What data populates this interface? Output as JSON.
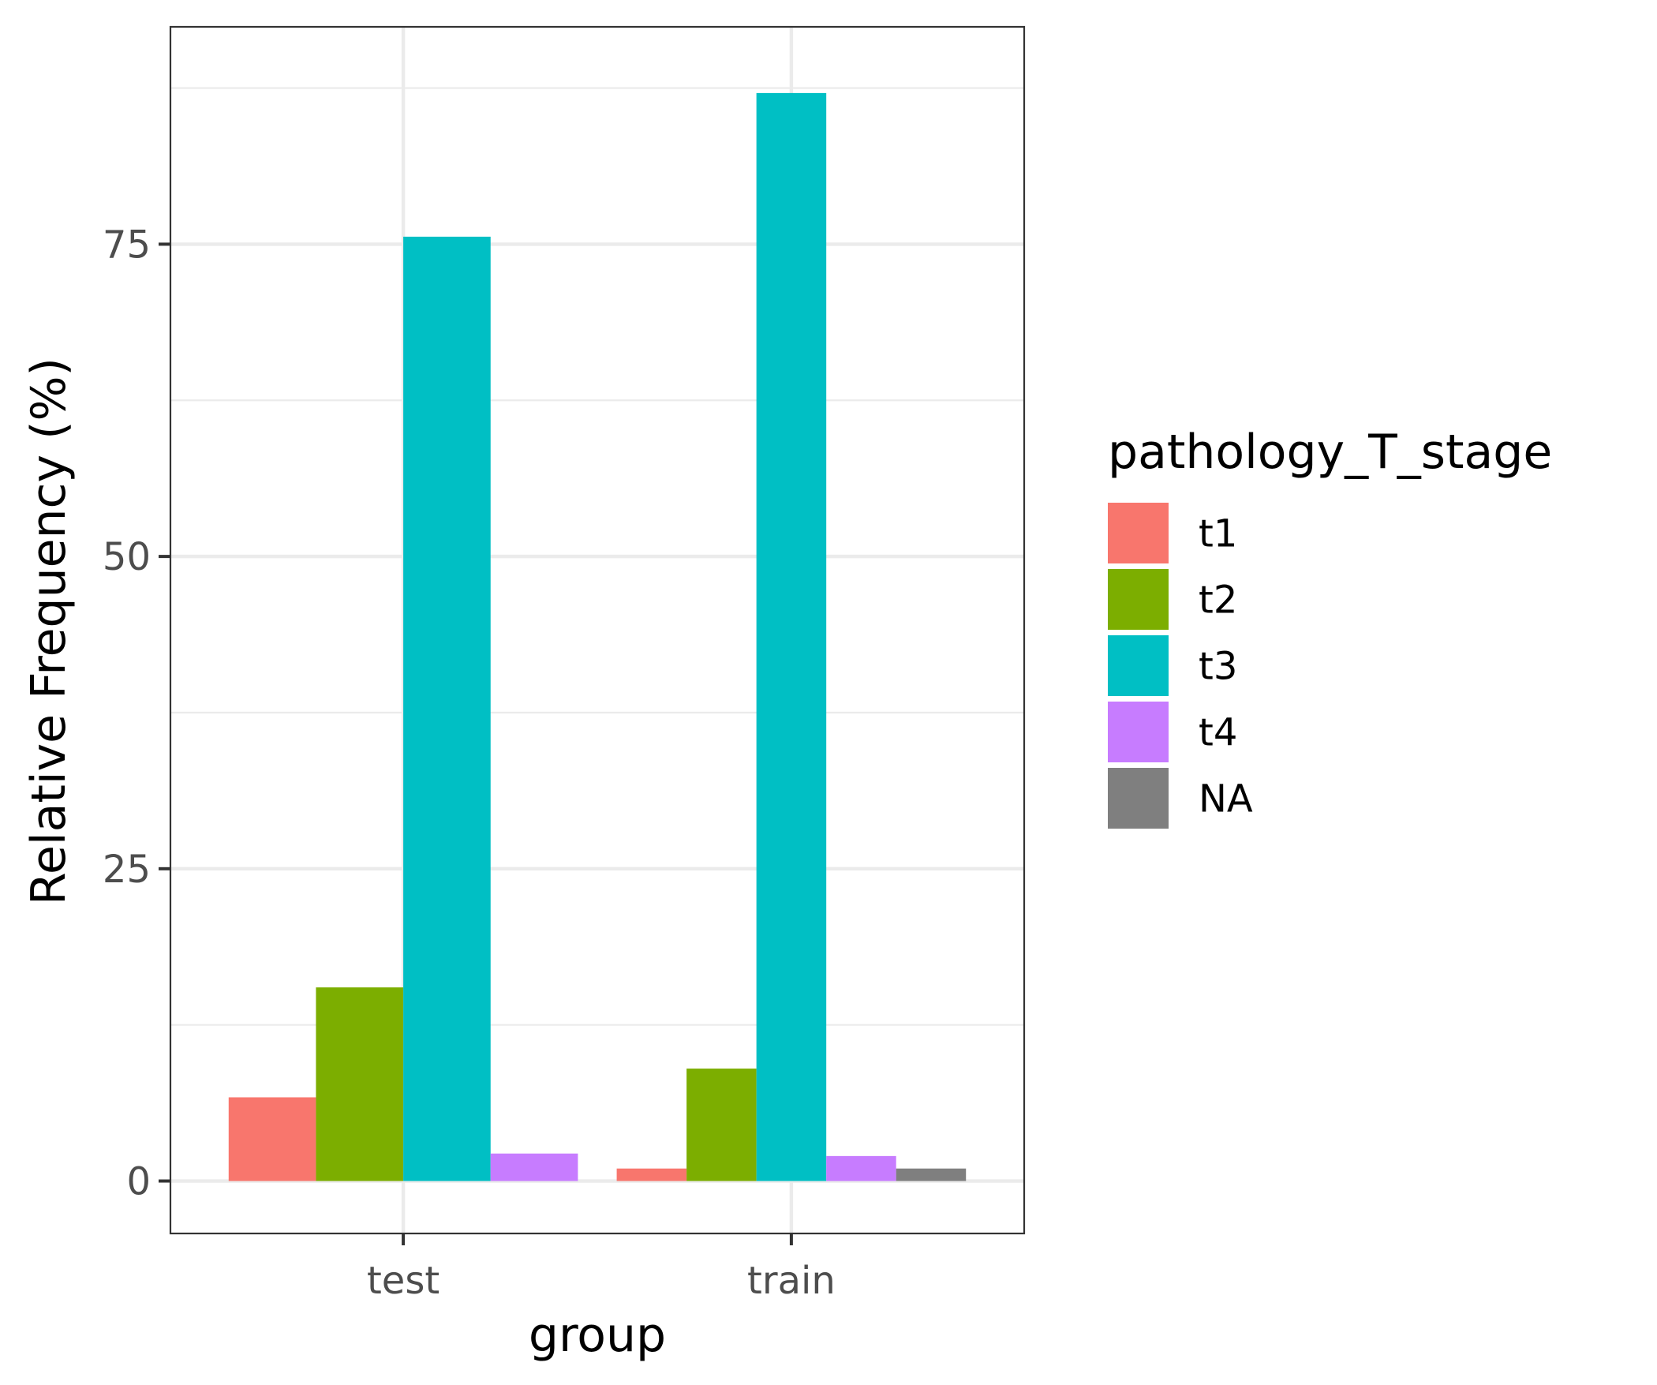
{
  "chart_data": {
    "type": "bar",
    "title": "",
    "xlabel": "group",
    "ylabel": "Relative Frequency (%)",
    "categories": [
      "test",
      "train"
    ],
    "ylim": [
      -4.2,
      92.4
    ],
    "yticks": [
      0,
      25,
      50,
      75
    ],
    "ytick_labels": [
      "0",
      "25",
      "50",
      "75"
    ],
    "grid": true,
    "legend": {
      "title": "pathology_T_stage",
      "placement": "right"
    },
    "series": [
      {
        "name": "t1",
        "color": "#F8766D",
        "values": [
          6.7,
          1.0
        ]
      },
      {
        "name": "t2",
        "color": "#7CAE00",
        "values": [
          15.5,
          9.0
        ]
      },
      {
        "name": "t3",
        "color": "#00BFC4",
        "values": [
          75.6,
          87.1
        ]
      },
      {
        "name": "t4",
        "color": "#C77CFF",
        "values": [
          2.2,
          2.0
        ]
      },
      {
        "name": "NA",
        "color": "#7F7F7F",
        "values": [
          null,
          1.0
        ]
      }
    ]
  }
}
